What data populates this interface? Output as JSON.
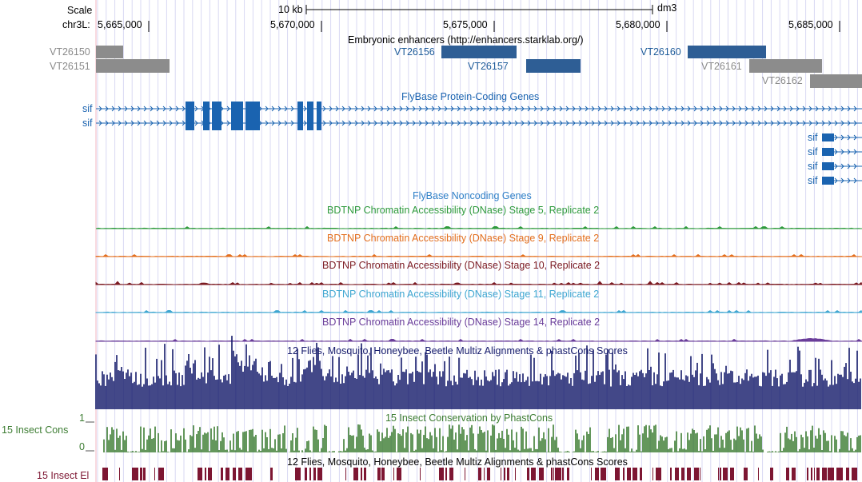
{
  "ruler": {
    "scale_label": "Scale",
    "scale_bar_label": "10 kb",
    "assembly": "dm3",
    "chrom_label": "chr3L:",
    "ticks": [
      "5,665,000",
      "5,670,000",
      "5,675,000",
      "5,680,000",
      "5,685,000"
    ]
  },
  "enhancers": {
    "title": "Embryonic enhancers (http://enhancers.starklab.org/)",
    "left_labels": [
      "VT26150",
      "VT26151"
    ],
    "items": [
      {
        "name": "VT26156",
        "color": "#2e5e95"
      },
      {
        "name": "VT26157",
        "color": "#2e5e95"
      },
      {
        "name": "VT26160",
        "color": "#2e5e95"
      },
      {
        "name": "VT26161",
        "color": "#8c8c8c"
      },
      {
        "name": "VT26162",
        "color": "#8c8c8c"
      }
    ]
  },
  "protein_genes": {
    "title": "FlyBase Protein-Coding Genes",
    "gene_name": "sif",
    "labels": [
      "sif",
      "sif",
      "sif",
      "sif",
      "sif",
      "sif"
    ],
    "color": "#1a63b0"
  },
  "noncoding": {
    "title": "FlyBase Noncoding Genes"
  },
  "dnase_tracks": [
    {
      "title": "BDTNP Chromatin Accessibility (DNase) Stage 5, Replicate 2",
      "color": "#2e9a3c"
    },
    {
      "title": "BDTNP Chromatin Accessibility (DNase) Stage 9, Replicate 2",
      "color": "#e36f1e"
    },
    {
      "title": "BDTNP Chromatin Accessibility (DNase) Stage 10, Replicate 2",
      "color": "#7b1a22"
    },
    {
      "title": "BDTNP Chromatin Accessibility (DNase) Stage 11, Replicate 2",
      "color": "#3ea6d1"
    },
    {
      "title": "BDTNP Chromatin Accessibility (DNase) Stage 14, Replicate 2",
      "color": "#6a3d9a"
    }
  ],
  "multiz": {
    "title": "12 Flies, Mosquito, Honeybee, Beetle Multiz Alignments & phastCons Scores",
    "color": "#141a6b"
  },
  "phastcons": {
    "title": "15 Insect Conservation by PhastCons",
    "left_label": "15 Insect Cons",
    "axis_max": "1",
    "axis_min": "0",
    "color": "#3d7d33"
  },
  "elements": {
    "title": "12 Flies, Mosquito, Honeybee, Beetle Multiz Alignments & phastCons Scores",
    "left_label": "15 Insect El",
    "color": "#7d1632"
  }
}
